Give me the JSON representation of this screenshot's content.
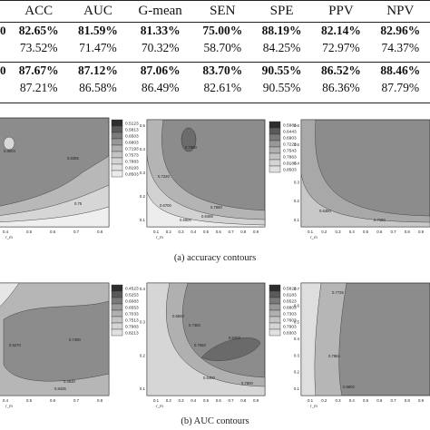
{
  "table": {
    "headers": [
      "ACC",
      "AUC",
      "G-mean",
      "SEN",
      "SPE",
      "PPV",
      "NPV"
    ],
    "rows": [
      {
        "label": "0",
        "bold": true,
        "cells": [
          "82.65%",
          "81.59%",
          "81.33%",
          "75.00%",
          "88.19%",
          "82.14%",
          "82.96%"
        ]
      },
      {
        "label": "",
        "bold": false,
        "cells": [
          "73.52%",
          "71.47%",
          "70.32%",
          "58.70%",
          "84.25%",
          "72.97%",
          "74.37%"
        ]
      },
      {
        "label": "0",
        "bold": true,
        "cells": [
          "87.67%",
          "87.12%",
          "87.06%",
          "83.70%",
          "90.55%",
          "86.52%",
          "88.46%"
        ]
      },
      {
        "label": "",
        "bold": false,
        "cells": [
          "87.21%",
          "86.58%",
          "86.49%",
          "82.61%",
          "90.55%",
          "86.36%",
          "87.79%"
        ]
      }
    ]
  },
  "figure": {
    "caption_a": "(a)  accuracy contours",
    "caption_b": "(b)  AUC contours",
    "row_a": [
      {
        "legend": [
          "0.5123",
          "0.5813",
          "0.6503",
          "0.6803",
          "0.7193",
          "0.7573",
          "0.7883",
          "0.8193",
          "0.8503"
        ],
        "xticks": [
          "0.4",
          "0.5",
          "0.6",
          "0.7",
          "0.8"
        ],
        "yticks": [],
        "x_axis": "r_m",
        "labels": [
          "0.8004",
          "0.8395",
          "0.75"
        ]
      },
      {
        "legend": [
          "0.5983",
          "0.6443",
          "0.6903",
          "0.7223",
          "0.7543",
          "0.7863",
          "0.8183",
          "0.8503"
        ],
        "xticks": [
          "0.1",
          "0.2",
          "0.3",
          "0.4",
          "0.5",
          "0.6",
          "0.7",
          "0.8",
          "0.9"
        ],
        "yticks": [
          "0.1",
          "0.2",
          "0.3",
          "0.4",
          "0.5"
        ],
        "x_axis": "r_m",
        "labels": [
          "0.7650",
          "0.7220",
          "0.6700",
          "0.8488",
          "0.7860",
          "0.5900"
        ]
      },
      {
        "legend": [
          "0.5983",
          "0.6333",
          "0.6683",
          "0.7233",
          "0.7583",
          "0.7933"
        ],
        "xticks": [
          "0.1",
          "0.2",
          "0.3",
          "0.4",
          "0.5",
          "0.6",
          "0.7",
          "0.8",
          "0.9"
        ],
        "yticks": [
          "0.1",
          "0.2",
          "0.3",
          "0.4",
          "0.5",
          "0.6"
        ],
        "x_axis": "r_m",
        "labels": [
          "0.7160",
          "0.6350"
        ]
      }
    ],
    "row_b": [
      {
        "legend": [
          "0.4523",
          "0.5253",
          "0.6083",
          "0.6553",
          "0.7033",
          "0.7513",
          "0.7983",
          "0.8213"
        ],
        "xticks": [
          "0.4",
          "0.5",
          "0.6",
          "0.7",
          "0.8"
        ],
        "yticks": [],
        "x_axis": "r_m",
        "labels": [
          "0.8270",
          "0.7480",
          "0.4930",
          "0.8435"
        ]
      },
      {
        "legend": [
          "0.5823",
          "0.6183",
          "0.6523",
          "0.6803",
          "0.7303",
          "0.7603",
          "0.7903",
          "0.8303"
        ],
        "xticks": [
          "0.1",
          "0.2",
          "0.3",
          "0.4",
          "0.5",
          "0.6",
          "0.7",
          "0.8",
          "0.9"
        ],
        "yticks": [
          "0.1",
          "0.2",
          "0.3",
          "0.4"
        ],
        "x_axis": "r_m",
        "labels": [
          "0.6840",
          "0.7380",
          "0.7560",
          "0.8300",
          "0.6400",
          "0.7800"
        ]
      },
      {
        "legend": [
          "0.6150",
          "0.6543",
          "0.6983",
          "0.7283",
          "0.7683",
          "0.8083"
        ],
        "xticks": [
          "0.1",
          "0.2",
          "0.3",
          "0.4",
          "0.5",
          "0.6",
          "0.7",
          "0.8",
          "0.9"
        ],
        "yticks": [
          "0.1",
          "0.2",
          "0.3",
          "0.4",
          "0.5",
          "0.6",
          "0.7"
        ],
        "x_axis": "r_m",
        "labels": [
          "0.7735",
          "0.7862",
          "0.8600"
        ]
      }
    ]
  }
}
